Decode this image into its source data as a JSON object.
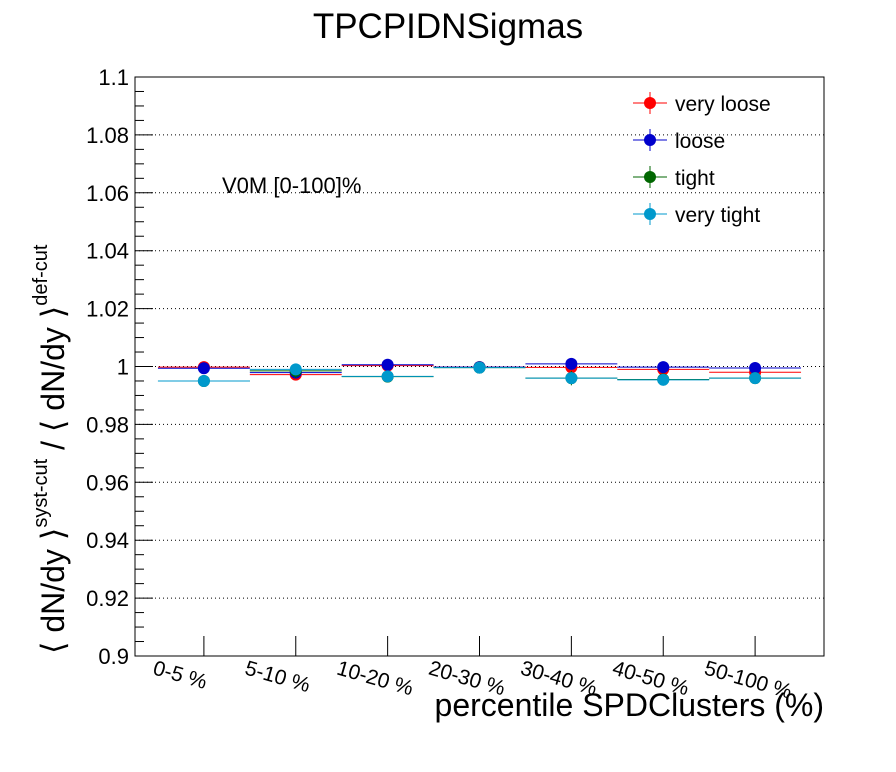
{
  "chart_data": {
    "type": "scatter",
    "title": "TPCPIDNSigmas",
    "xlabel": "percentile SPDClusters (%)",
    "ylabel": {
      "main_open": "⟨ dN/dy ⟩",
      "sup_num": "syst-cut",
      "slash": " / ",
      "main_den": "⟨ dN/dy ⟩",
      "sup_den": "def-cut"
    },
    "annotation": "V0M [0-100]%",
    "ylim": [
      0.9,
      1.1
    ],
    "yticks": [
      "0.9",
      "0.92",
      "0.94",
      "0.96",
      "0.98",
      "1",
      "1.02",
      "1.04",
      "1.06",
      "1.08",
      "1.1"
    ],
    "ytick_values": [
      0.9,
      0.92,
      0.94,
      0.96,
      0.98,
      1.0,
      1.02,
      1.04,
      1.06,
      1.08,
      1.1
    ],
    "categories": [
      "0-5 %",
      "5-10 %",
      "10-20 %",
      "20-30 %",
      "30-40 %",
      "40-50 %",
      "50-100 %"
    ],
    "grid": "horizontal",
    "legend_position": "top-right",
    "series": [
      {
        "name": "very loose",
        "color": "#ff0000",
        "values": [
          0.9998,
          0.9972,
          1.0003,
          0.9998,
          0.9997,
          0.999,
          0.998
        ],
        "errors": [
          0.0015,
          0.0015,
          0.0013,
          0.0012,
          0.0015,
          0.0015,
          0.0012
        ]
      },
      {
        "name": "loose",
        "color": "#0000cc",
        "values": [
          0.9994,
          0.9979,
          1.0006,
          0.9998,
          1.0009,
          0.9998,
          0.9995
        ],
        "errors": [
          0.0015,
          0.0015,
          0.0013,
          0.0012,
          0.0015,
          0.0015,
          0.0012
        ]
      },
      {
        "name": "tight",
        "color": "#006600",
        "values": [
          0.995,
          0.9985,
          0.9965,
          0.9996,
          0.996,
          0.9955,
          0.996
        ],
        "errors": [
          0.0015,
          0.0025,
          0.0013,
          0.0012,
          0.0025,
          0.002,
          0.0015
        ]
      },
      {
        "name": "very tight",
        "color": "#0099cc",
        "values": [
          0.995,
          0.999,
          0.9966,
          0.9996,
          0.996,
          0.9954,
          0.996
        ],
        "errors": [
          0.0015,
          0.002,
          0.0013,
          0.0012,
          0.002,
          0.0015,
          0.0012
        ]
      }
    ]
  }
}
